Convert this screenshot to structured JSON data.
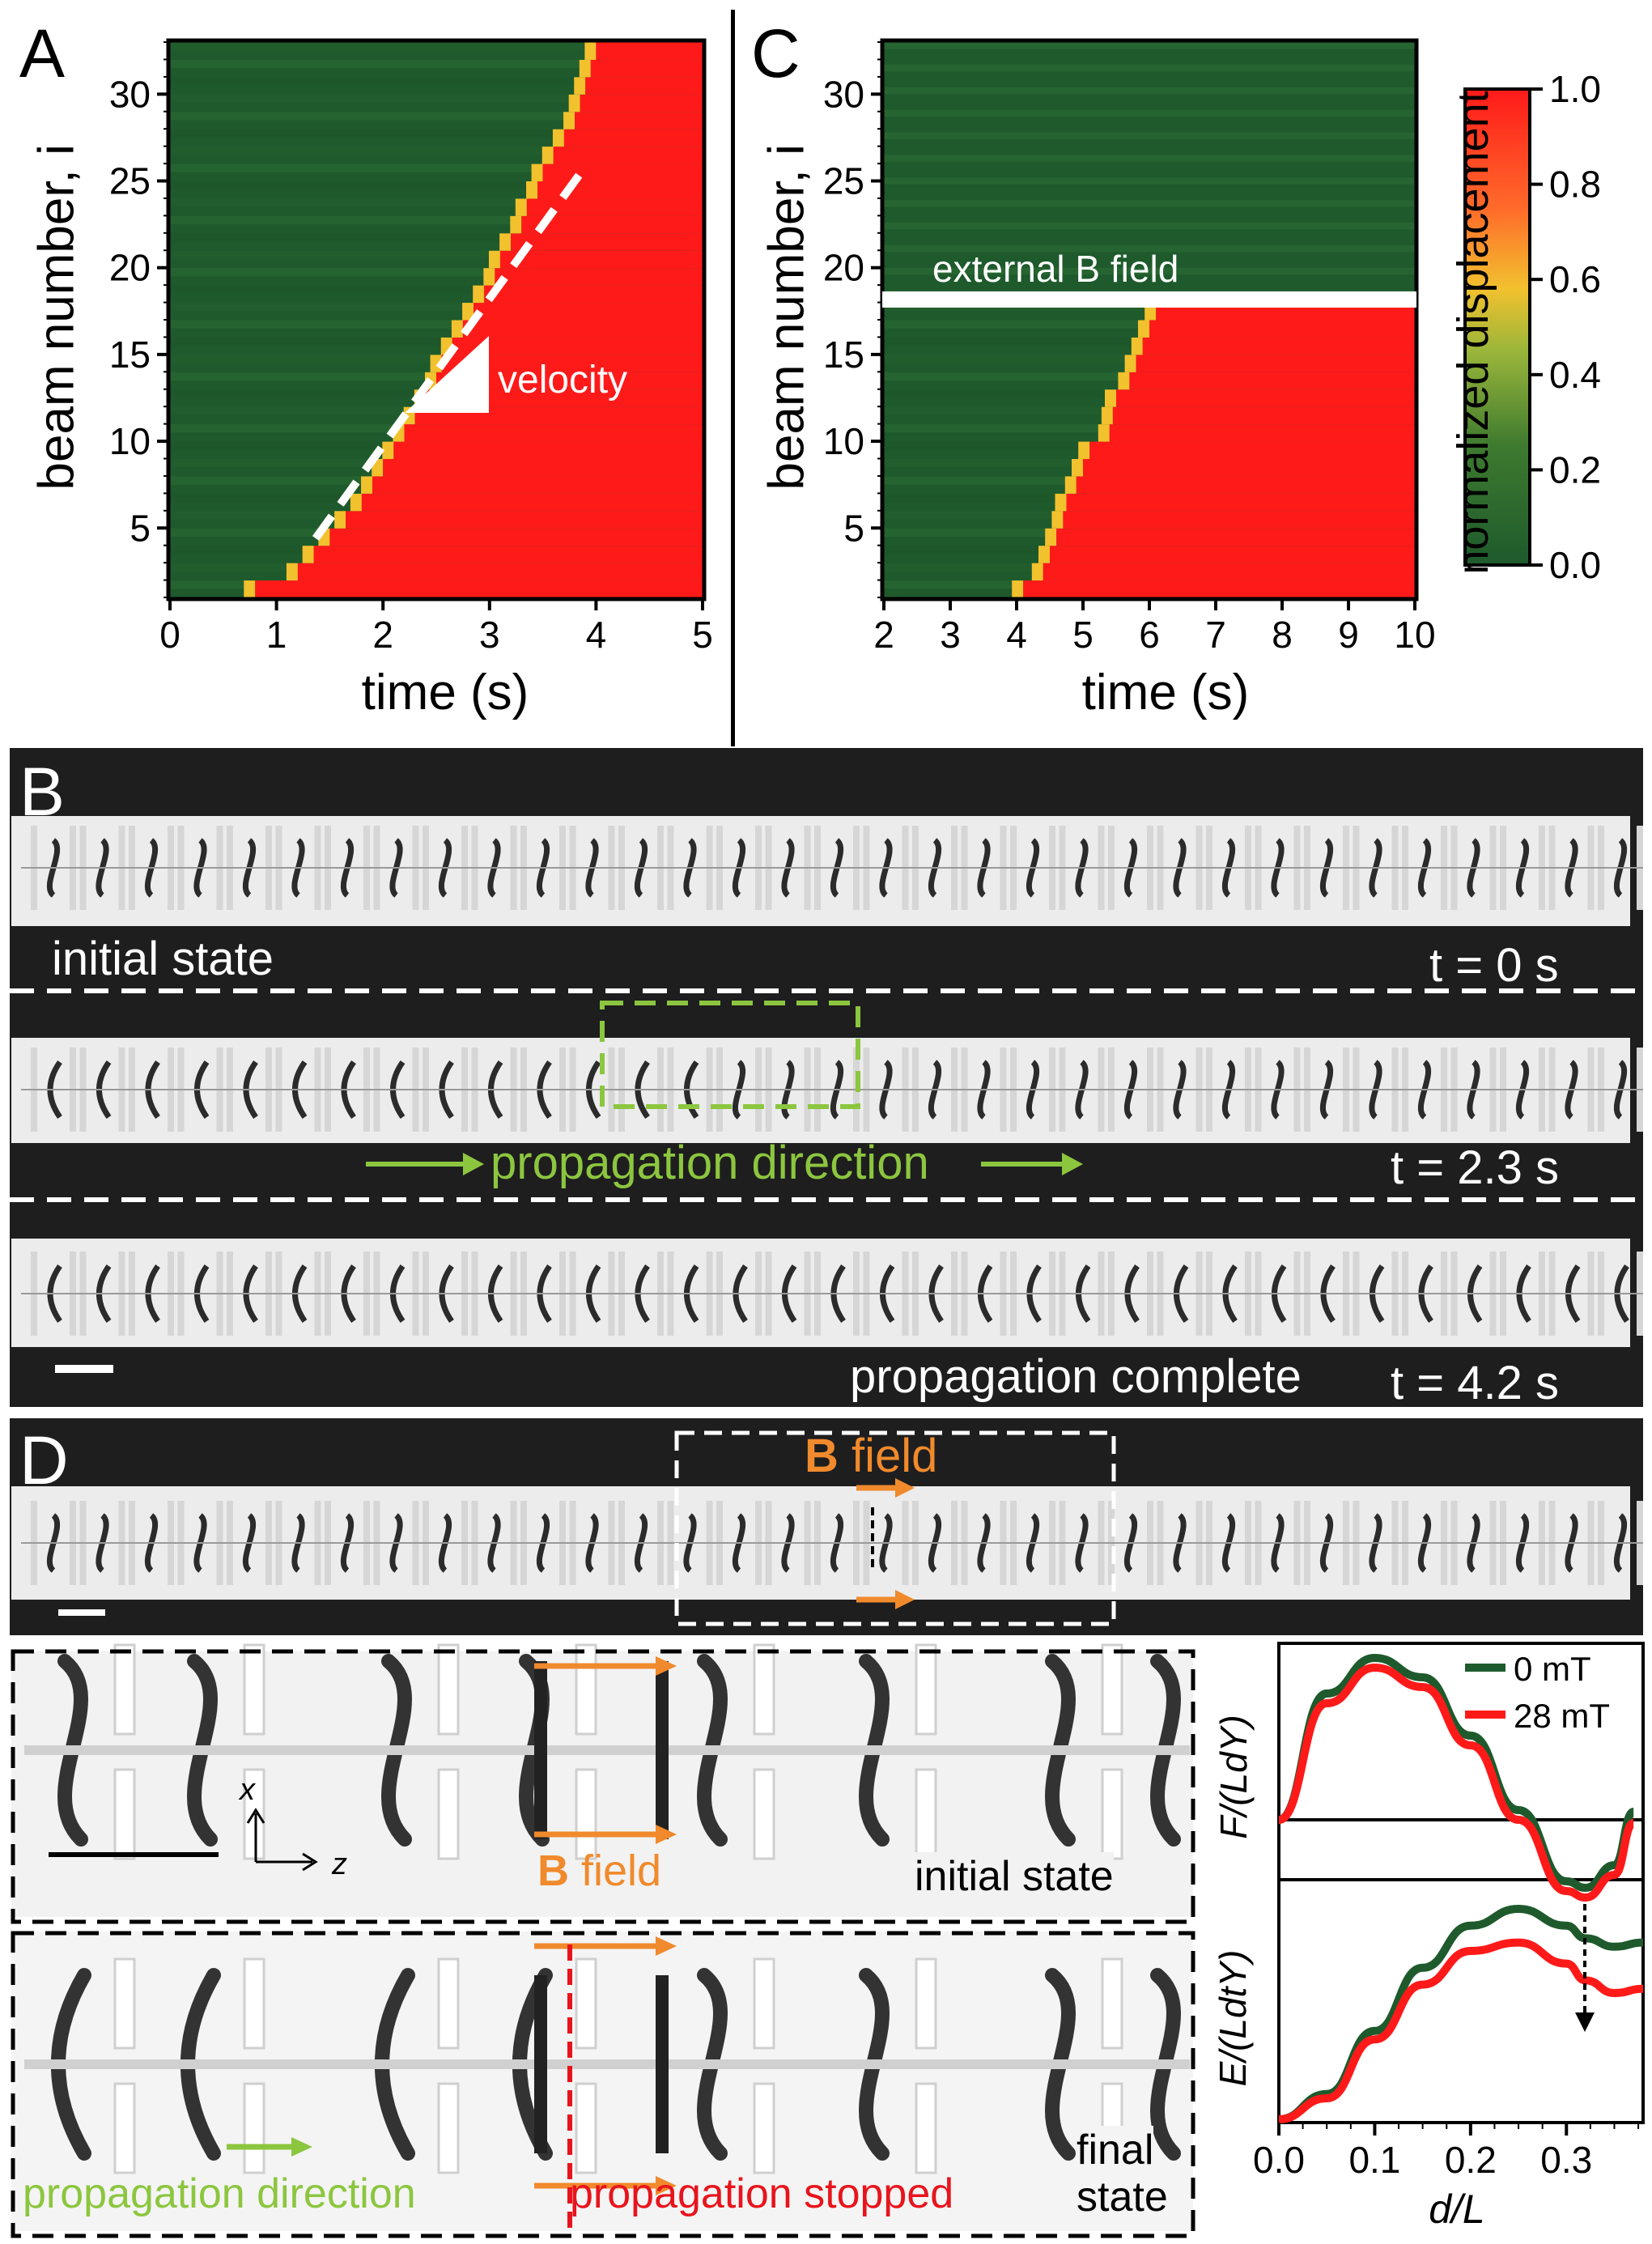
{
  "panels": {
    "A": {
      "letter": "A",
      "ylabel": "beam number, i",
      "xlabel": "time (s)",
      "xticks": [
        "0",
        "1",
        "2",
        "3",
        "4",
        "5"
      ],
      "yticks": [
        "5",
        "10",
        "15",
        "20",
        "25",
        "30"
      ],
      "annotation": "velocity"
    },
    "C": {
      "letter": "C",
      "ylabel": "beam number, i",
      "xlabel": "time (s)",
      "xticks": [
        "2",
        "3",
        "4",
        "5",
        "6",
        "7",
        "8",
        "9",
        "10"
      ],
      "yticks": [
        "5",
        "10",
        "15",
        "20",
        "25",
        "30"
      ],
      "annotation": "external B field"
    },
    "colorbar": {
      "label": "normalized displacement",
      "ticks": [
        "1.0",
        "0.8",
        "0.6",
        "0.4",
        "0.2",
        "0.0"
      ]
    },
    "B": {
      "letter": "B",
      "row1": {
        "left": "initial state",
        "right": "t = 0 s"
      },
      "row2": {
        "left": "propagation direction",
        "right": "t = 2.3 s"
      },
      "row3": {
        "left": "propagation complete",
        "right": "t = 4.2 s"
      }
    },
    "D": {
      "letter": "D",
      "field_label_bold": "B",
      "field_label_rest": " field",
      "zoom_top": {
        "state": "initial state",
        "field_bold": "B",
        "field_rest": " field",
        "axis_x": "x",
        "axis_z": "z"
      },
      "zoom_bottom": {
        "state_line1": "final",
        "state_line2": "state",
        "left": "propagation direction",
        "right": "propagation stopped"
      }
    },
    "E": {
      "ylabel_top": "F/(LdY)",
      "ylabel_bottom": "E/(LdtY)",
      "xlabel": "d/L",
      "xticks": [
        "0.0",
        "0.1",
        "0.2",
        "0.3"
      ],
      "legend": [
        "0 mT",
        "28 mT"
      ]
    }
  },
  "colors": {
    "green": "#1e5a2c",
    "red": "#ff1a1a",
    "orange": "#f08a2c",
    "lightgreen": "#8cc63f",
    "dark_red": "#e8141c"
  },
  "chart_data": [
    {
      "type": "heatmap",
      "title": "",
      "x": [
        0,
        1,
        2,
        3,
        4,
        5
      ],
      "xlim": [
        0,
        5
      ],
      "ylim": [
        1,
        33
      ],
      "xlabel": "time (s)",
      "ylabel": "beam number, i",
      "colorscale": [
        "#1e5a2c",
        "#9ab63a",
        "#f2c12e",
        "#ff1a1a"
      ],
      "front_time_s": [
        0.8,
        1.2,
        1.35,
        1.5,
        1.65,
        1.8,
        1.9,
        2.0,
        2.1,
        2.2,
        2.3,
        2.4,
        2.5,
        2.55,
        2.65,
        2.75,
        2.85,
        2.95,
        3.05,
        3.1,
        3.2,
        3.3,
        3.35,
        3.45,
        3.5,
        3.6,
        3.7,
        3.8,
        3.85,
        3.9,
        3.95,
        4.0,
        4.05
      ],
      "value_range": [
        0.0,
        1.0
      ]
    },
    {
      "type": "heatmap",
      "title": "",
      "x": [
        2,
        3,
        4,
        5,
        6,
        7,
        8,
        9,
        10
      ],
      "xlim": [
        2,
        10
      ],
      "ylim": [
        1,
        33
      ],
      "xlabel": "time (s)",
      "ylabel": "beam number, i",
      "front_time_s": [
        4.1,
        4.4,
        4.5,
        4.6,
        4.7,
        4.75,
        4.9,
        5.0,
        5.1,
        5.4,
        5.45,
        5.5,
        5.7,
        5.8,
        5.9,
        6.0,
        6.1
      ],
      "field_boundary_beam": 18,
      "value_range": [
        0.0,
        1.0
      ]
    },
    {
      "type": "line",
      "title": "",
      "x": [
        0.0,
        0.05,
        0.1,
        0.15,
        0.2,
        0.25,
        0.3,
        0.32,
        0.35,
        0.37
      ],
      "xlim": [
        0,
        0.38
      ],
      "xlabel": "d/L",
      "ylabel": "F/(LdY)",
      "series": [
        {
          "name": "0 mT",
          "values": [
            0.0,
            0.78,
            1.0,
            0.88,
            0.52,
            0.06,
            -0.38,
            -0.42,
            -0.28,
            0.05
          ]
        },
        {
          "name": "28 mT",
          "values": [
            0.0,
            0.72,
            0.94,
            0.82,
            0.46,
            0.0,
            -0.44,
            -0.48,
            -0.34,
            -0.02
          ]
        }
      ]
    },
    {
      "type": "line",
      "title": "",
      "x": [
        0.0,
        0.05,
        0.1,
        0.15,
        0.2,
        0.25,
        0.3,
        0.32,
        0.35,
        0.38
      ],
      "xlim": [
        0,
        0.38
      ],
      "xlabel": "d/L",
      "ylabel": "E/(LdtY)",
      "series": [
        {
          "name": "0 mT",
          "values": [
            0.0,
            0.12,
            0.42,
            0.72,
            0.92,
            1.0,
            0.92,
            0.86,
            0.82,
            0.84
          ]
        },
        {
          "name": "28 mT",
          "values": [
            0.0,
            0.1,
            0.38,
            0.64,
            0.8,
            0.84,
            0.74,
            0.66,
            0.6,
            0.62
          ]
        }
      ]
    }
  ]
}
